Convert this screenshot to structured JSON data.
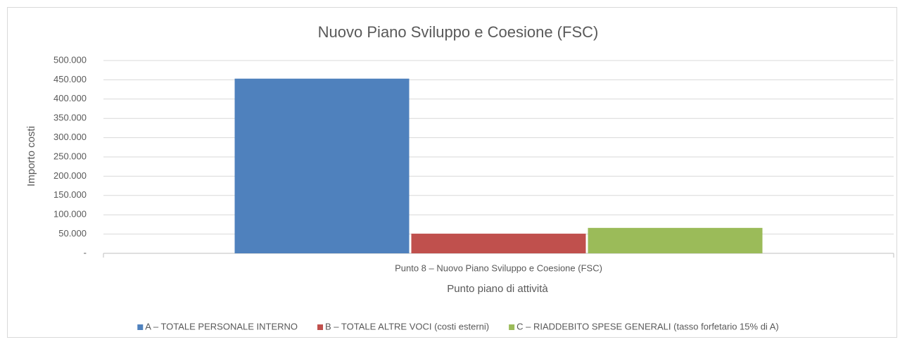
{
  "chart_data": {
    "type": "bar",
    "title": "Nuovo Piano Sviluppo e Coesione (FSC)",
    "x_label": "Punto piano di attività",
    "y_label": "Importo costi",
    "categories": [
      "Punto 8 – Nuovo Piano Sviluppo e Coesione (FSC)"
    ],
    "series": [
      {
        "name": "A – TOTALE PERSONALE INTERNO",
        "color": "#4f81bd",
        "values": [
          453000
        ]
      },
      {
        "name": "B – TOTALE ALTRE VOCI (costi esterni)",
        "color": "#c0504d",
        "values": [
          51000
        ]
      },
      {
        "name": "C – RIADDEBITO SPESE GENERALI (tasso forfetario 15% di A)",
        "color": "#9bbb59",
        "values": [
          66000
        ]
      }
    ],
    "ylim": [
      0,
      500000
    ],
    "yticks": [
      {
        "value": 0,
        "label": "-"
      },
      {
        "value": 50000,
        "label": "50.000"
      },
      {
        "value": 100000,
        "label": "100.000"
      },
      {
        "value": 150000,
        "label": "150.000"
      },
      {
        "value": 200000,
        "label": "200.000"
      },
      {
        "value": 250000,
        "label": "250.000"
      },
      {
        "value": 300000,
        "label": "300.000"
      },
      {
        "value": 350000,
        "label": "350.000"
      },
      {
        "value": 400000,
        "label": "400.000"
      },
      {
        "value": 450000,
        "label": "450.000"
      },
      {
        "value": 500000,
        "label": "500.000"
      }
    ],
    "grid": true,
    "legend": "bottom"
  }
}
